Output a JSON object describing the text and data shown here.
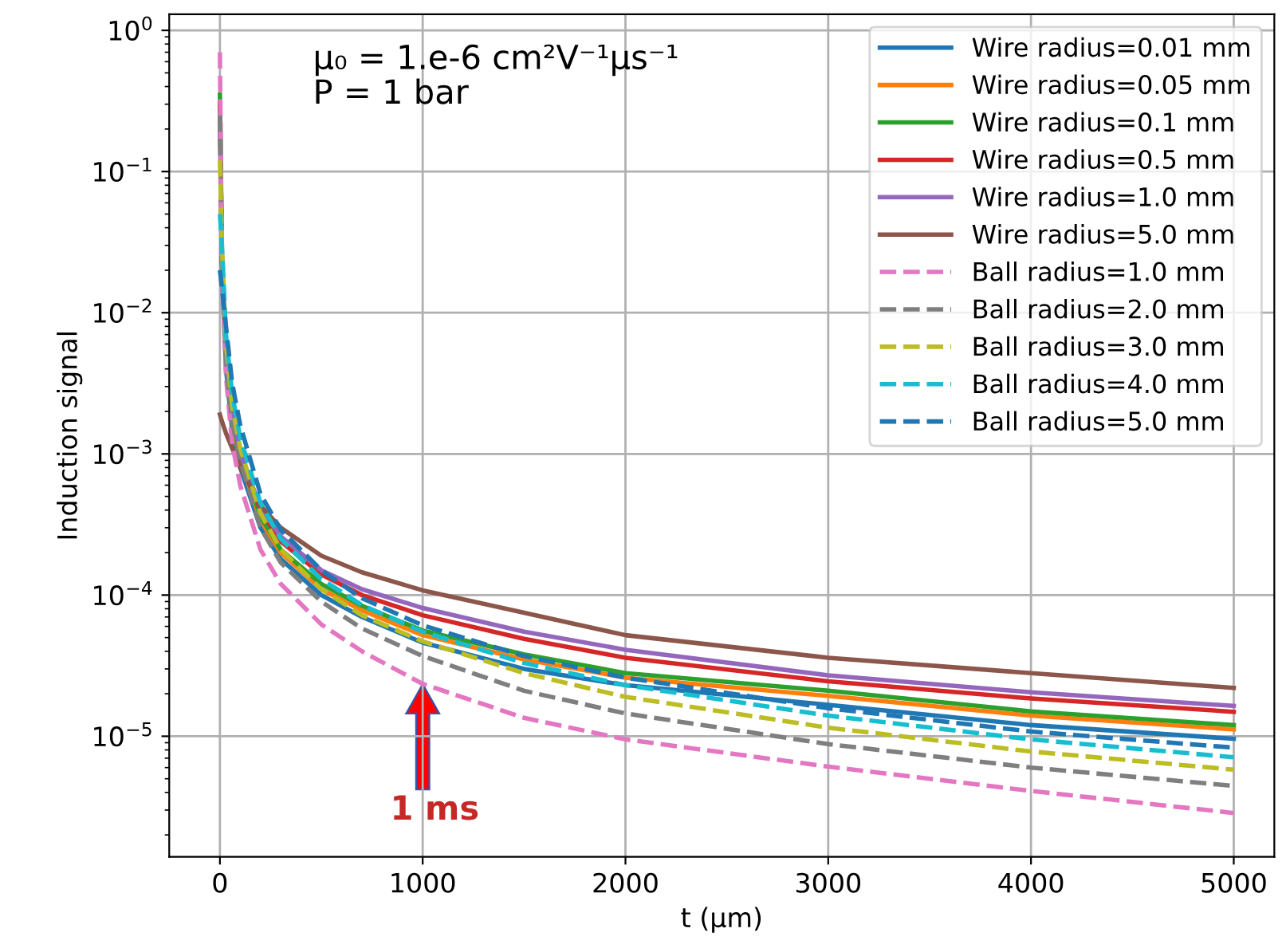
{
  "chart_data": {
    "type": "line",
    "xlabel": "t (μm)",
    "ylabel": "Induction signal",
    "log": "y",
    "grid": true,
    "legend": "top right",
    "xlim": [
      -250,
      5200
    ],
    "xticks": [
      0,
      1000,
      2000,
      3000,
      4000,
      5000
    ],
    "ylim": [
      1.4e-06,
      1.3
    ],
    "yticks": [
      {
        "value": 1e-05,
        "label": "10$^{−5}$"
      },
      {
        "value": 0.0001,
        "label": "10$^{−4}$"
      },
      {
        "value": 0.001,
        "label": "10$^{−3}$"
      },
      {
        "value": 0.01,
        "label": "10$^{−2}$"
      },
      {
        "value": 0.1,
        "label": "10$^{−1}$"
      },
      {
        "value": 1,
        "label": "10$^{0}$"
      }
    ],
    "x": [
      0,
      10,
      30,
      60,
      100,
      200,
      300,
      500,
      700,
      1000,
      1500,
      2000,
      3000,
      4000,
      5000
    ],
    "annotations": [
      "μ₀ = 1.e-6 cm²V⁻¹μs⁻¹\nP = 1 bar",
      "1 ms"
    ],
    "series": [
      {
        "name": "Wire radius=0.01 mm",
        "color": "#1f77b4",
        "line_style": "solid",
        "values": [
          0.3,
          0.02,
          0.004,
          0.0015,
          0.0008,
          0.0003,
          0.00018,
          0.0001,
          7e-05,
          4.6e-05,
          3e-05,
          2.3e-05,
          1.67e-05,
          1.2e-05,
          9.6e-06
        ]
      },
      {
        "name": "Wire radius=0.05 mm",
        "color": "#ff7f0e",
        "line_style": "solid",
        "values": [
          null,
          null,
          null,
          0.0017,
          0.0009,
          0.00034,
          0.0002,
          0.00011,
          7.8e-05,
          5.2e-05,
          3.5e-05,
          2.6e-05,
          1.93e-05,
          1.4e-05,
          1.12e-05
        ]
      },
      {
        "name": "Wire radius=0.1 mm",
        "color": "#2ca02c",
        "line_style": "solid",
        "values": [
          0.35,
          0.025,
          0.0047,
          0.0018,
          0.00095,
          0.00036,
          0.00021,
          0.00012,
          8.4e-05,
          5.6e-05,
          3.8e-05,
          2.8e-05,
          2.1e-05,
          1.5e-05,
          1.2e-05
        ]
      },
      {
        "name": "Wire radius=0.5 mm",
        "color": "#d62728",
        "line_style": "solid",
        "values": [
          0.3,
          0.025,
          0.005,
          0.002,
          0.001,
          0.0004,
          0.00024,
          0.00014,
          0.0001,
          7.2e-05,
          4.9e-05,
          3.6e-05,
          2.45e-05,
          1.85e-05,
          1.49e-05
        ]
      },
      {
        "name": "Wire radius=1.0 mm",
        "color": "#9467bd",
        "line_style": "solid",
        "values": [
          0.25,
          0.02,
          0.005,
          0.002,
          0.001,
          0.00042,
          0.00026,
          0.00015,
          0.00011,
          8.1e-05,
          5.5e-05,
          4.1e-05,
          2.7e-05,
          2.05e-05,
          1.64e-05
        ]
      },
      {
        "name": "Wire radius=5.0 mm",
        "color": "#8c564b",
        "line_style": "solid",
        "values": [
          0.0019,
          0.0017,
          0.0014,
          0.0011,
          0.0008,
          0.00043,
          0.0003,
          0.00019,
          0.000145,
          0.000108,
          7.5e-05,
          5.2e-05,
          3.6e-05,
          2.8e-05,
          2.2e-05
        ]
      },
      {
        "name": "Ball radius=1.0 mm",
        "color": "#e377c2",
        "line_style": "dashed",
        "values": [
          0.7,
          0.02,
          0.0035,
          0.0012,
          0.0006,
          0.00021,
          0.00012,
          6.2e-05,
          4e-05,
          2.35e-05,
          1.35e-05,
          9.5e-06,
          6.1e-06,
          4.1e-06,
          2.86e-06
        ]
      },
      {
        "name": "Ball radius=2.0 mm",
        "color": "#7f7f7f",
        "line_style": "dashed",
        "values": [
          0.25,
          0.025,
          0.0045,
          0.0017,
          0.0009,
          0.0003,
          0.00017,
          9e-05,
          5.8e-05,
          3.7e-05,
          2.1e-05,
          1.45e-05,
          8.8e-06,
          6e-06,
          4.45e-06
        ]
      },
      {
        "name": "Ball radius=3.0 mm",
        "color": "#bcbd22",
        "line_style": "dashed",
        "values": [
          0.12,
          0.03,
          0.006,
          0.0022,
          0.0011,
          0.00038,
          0.00021,
          0.00011,
          7.2e-05,
          4.7e-05,
          2.8e-05,
          1.9e-05,
          1.15e-05,
          7.8e-06,
          5.8e-06
        ]
      },
      {
        "name": "Ball radius=4.0 mm",
        "color": "#17becf",
        "line_style": "dashed",
        "values": [
          0.05,
          0.03,
          0.007,
          0.0027,
          0.0013,
          0.00045,
          0.00025,
          0.00013,
          8.5e-05,
          5.5e-05,
          3.3e-05,
          2.3e-05,
          1.4e-05,
          9.5e-06,
          7.1e-06
        ]
      },
      {
        "name": "Ball radius=5.0 mm",
        "color": "#1f77b4",
        "line_style": "dashed",
        "values": [
          0.02,
          0.015,
          0.008,
          0.0032,
          0.0016,
          0.00052,
          0.00029,
          0.00015,
          9.5e-05,
          6.1e-05,
          3.7e-05,
          2.6e-05,
          1.58e-05,
          1.08e-05,
          8.3e-06
        ]
      }
    ]
  }
}
